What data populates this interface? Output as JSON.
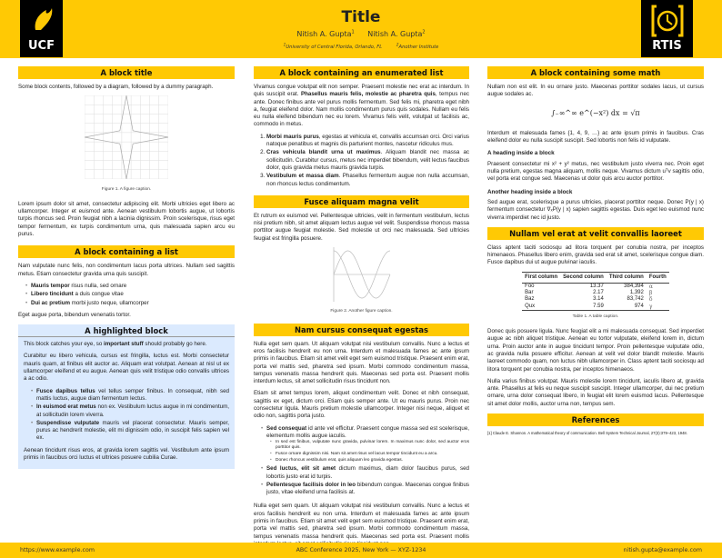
{
  "header": {
    "title": "Title",
    "authors": [
      "Nitish A. Gupta",
      "Nitish A. Gupta"
    ],
    "author_marks": [
      "1",
      "2"
    ],
    "affiliations": [
      "University of Central Florida, Orlando, FL",
      "Another Institute"
    ],
    "logo_left": "UCF",
    "logo_right": "RTIS",
    "accent": "#FFC904"
  },
  "col1": {
    "b1_title": "A block title",
    "b1_intro": "Some block contents, followed by a diagram, followed by a dummy paragraph.",
    "fig1_caption": "Figure 1. A figure caption.",
    "b1_para": "Lorem ipsum dolor sit amet, consectetur adipiscing elit. Morbi ultricies eget libero ac ullamcorper. Integer et euismod ante. Aenean vestibulum lobortis augue, ut lobortis turpis rhoncus sed. Proin feugiat nibh a lacinia dignissim. Proin scelerisque, risus eget tempor fermentum, ex turpis condimentum urna, quis malesuada sapien arcu eu purus.",
    "b2_title": "A block containing a list",
    "b2_intro": "Nam vulputate nunc felis, non condimentum lacus porta ultrices. Nullam sed sagittis metus. Etiam consectetur gravida urna quis suscipit.",
    "b2_list": [
      {
        "bold": "Mauris tempor",
        "text": " risus nulla, sed ornare"
      },
      {
        "bold": "Libero tincidunt",
        "text": " a duis congue vitae"
      },
      {
        "bold": "Dui ac pretium",
        "text": " morbi justo neque, ullamcorper"
      }
    ],
    "b2_outro": "Eget augue porta, bibendum venenatis tortor.",
    "b3_title": "A highlighted block",
    "b3_p1_a": "This block catches your eye, so ",
    "b3_p1_bold": "important stuff",
    "b3_p1_b": " should probably go here.",
    "b3_p2": "Curabitur eu libero vehicula, cursus est fringilla, luctus est. Morbi consectetur mauris quam, at finibus elit auctor ac. Aliquam erat volutpat. Aenean at nisl ut ex ullamcorper eleifend et eu augue. Aenean quis velit tristique odio convallis ultrices a ac odio.",
    "b3_list": [
      {
        "bold": "Fusce dapibus tellus",
        "text": " vel tellus semper finibus. In consequat, nibh sed mattis luctus, augue diam fermentum lectus."
      },
      {
        "bold": "In euismod erat metus",
        "text": " non ex. Vestibulum luctus augue in mi condimentum, at sollicitudin lorem viverra."
      },
      {
        "bold": "Suspendisse vulputate",
        "text": " mauris vel placerat consectetur. Mauris semper, purus ac hendrerit molestie, elit mi dignissim odio, in suscipit felis sapien vel ex."
      }
    ],
    "b3_p3": "Aenean tincidunt risus eros, at gravida lorem sagittis vel. Vestibulum ante ipsum primis in faucibus orci luctus et ultrices posuere cubilia Curae."
  },
  "col2": {
    "b1_title": "A block containing an enumerated list",
    "b1_p_a": "Vivamus congue volutpat elit non semper. Praesent molestie nec erat ac interdum. In quis suscipit erat. ",
    "b1_p_bold": "Phasellus mauris felis, molestie ac pharetra quis",
    "b1_p_b": ", tempus nec ante. Donec finibus ante vel purus mollis fermentum. Sed felis mi, pharetra eget nibh a, feugiat eleifend dolor. Nam mollis condimentum purus quis sodales. Nullam eu felis eu nulla eleifend bibendum nec eu lorem. Vivamus felis velit, volutpat ut facilisis ac, commodo in metus.",
    "b1_list": [
      {
        "bold": "Morbi mauris purus",
        "text": ", egestas at vehicula et, convallis accumsan orci. Orci varius natoque penatibus et magnis dis parturient montes, nascetur ridiculus mus."
      },
      {
        "bold": "Cras vehicula blandit urna ut maximus",
        "text": ". Aliquam blandit nec massa ac sollicitudin. Curabitur cursus, metus nec imperdiet bibendum, velit lectus faucibus dolor, quis gravida metus mauris gravida turpis."
      },
      {
        "bold": "Vestibulum et massa diam",
        "text": ". Phasellus fermentum augue non nulla accumsan, non rhoncus lectus condimentum."
      }
    ],
    "b2_title": "Fusce aliquam magna velit",
    "b2_p": "Et rutrum ex euismod vel. Pellentesque ultricies, velit in fermentum vestibulum, lectus nisi pretium nibh, sit amet aliquam lectus augue vel velit. Suspendisse rhoncus massa porttitor augue feugiat molestie. Sed molestie ut orci nec malesuada. Sed ultricies feugiat est fringilla posuere.",
    "fig2_caption": "Figure 2. Another figure caption.",
    "b3_title": "Nam cursus consequat egestas",
    "b3_p1": "Nulla eget sem quam. Ut aliquam volutpat nisi vestibulum convallis. Nunc a lectus et eros facilisis hendrerit eu non urna. Interdum et malesuada fames ac ante ipsum primis in faucibus. Etiam sit amet velit eget sem euismod tristique. Praesent enim erat, porta vel mattis sed, pharetra sed ipsum. Morbi commodo condimentum massa, tempus venenatis massa hendrerit quis. Maecenas sed porta est. Praesent mollis interdum lectus, sit amet sollicitudin risus tincidunt non.",
    "b3_p2": "Etiam sit amet tempus lorem, aliquet condimentum velit. Donec et nibh consequat, sagittis ex eget, dictum orci. Etiam quis semper ante. Ut eu mauris purus. Proin nec consectetur ligula. Mauris pretium molestie ullamcorper. Integer nisi neque, aliquet et odio non, sagittis porta justo.",
    "b3_list": [
      {
        "bold": "Sed consequat",
        "text": " id ante vel efficitur. Praesent congue massa sed est scelerisque, elementum mollis augue iaculis."
      },
      {
        "bold": "Sed luctus, elit sit amet",
        "text": " dictum maximus, diam dolor faucibus purus, sed lobortis justo erat id turpis."
      },
      {
        "bold": "Pellentesque facilisis dolor in leo",
        "text": " bibendum congue. Maecenas congue finibus justo, vitae eleifend urna facilisis at."
      }
    ],
    "b3_sublist": [
      "In sed est finibus, vulputate nunc gravida, pulvinar lorem. In maximus nunc dolor, sed auctor eros porttitor quis.",
      "Fusce ornare dignissim nisi. Nam sit amet risus vel lacus tempor tincidunt eu a arcu.",
      "Donec rhoncus vestibulum erat, quis aliquam leo gravida egestas."
    ],
    "b3_p3": "Nulla eget sem quam. Ut aliquam volutpat nisi vestibulum convallis. Nunc a lectus et eros facilisis hendrerit eu non urna. Interdum et malesuada fames ac ante ipsum primis in faucibus. Etiam sit amet velit eget sem euismod tristique. Praesent enim erat, porta vel mattis sed, pharetra sed ipsum. Morbi commodo condimentum massa, tempus venenatis massa hendrerit quis. Maecenas sed porta est. Praesent mollis interdum lectus, sit amet sollicitudin risus tincidunt non."
  },
  "col3": {
    "b1_title": "A block containing some math",
    "b1_p1": "Nullam non est elit. In eu ornare justo. Maecenas porttitor sodales lacus, ut cursus augue sodales ac.",
    "math1": "∫₋∞^∞ e^(−x²) dx = √π",
    "b1_p2": "Interdum et malesuada fames {1, 4, 9, …} ac ante ipsum primis in faucibus. Cras eleifend dolor eu nulla suscipit suscipit. Sed lobortis non felis id vulputate.",
    "h1": "A heading inside a block",
    "p3": "Praesent consectetur mi x² + y² metus, nec vestibulum justo viverra nec. Proin eget nulla pretium, egestas magna aliquam, mollis neque. Vivamus dictum uᵀv sagittis odio, vel porta erat congue sed. Maecenas ut dolor quis arcu auctor porttitor.",
    "h2": "Another heading inside a block",
    "p4": "Sed augue erat, scelerisque a purus ultricies, placerat porttitor neque. Donec P(y | x) fermentum consectetur ∇ₓP(y | x) sapien sagittis egestas. Duis eget leo euismod nunc viverra imperdiet nec id justo.",
    "b2_title": "Nullam vel erat at velit convallis laoreet",
    "b2_p1": "Class aptent taciti sociosqu ad litora torquent per conubia nostra, per inceptos himenaeos. Phasellus libero enim, gravida sed erat sit amet, scelerisque congue diam. Fusce dapibus dui ut augue pulvinar iaculis.",
    "table": {
      "headers": [
        "First column",
        "Second column",
        "Third column",
        "Fourth"
      ],
      "rows": [
        [
          "Foo",
          "13.37",
          "384,394",
          "α"
        ],
        [
          "Bar",
          "2.17",
          "1,392",
          "β"
        ],
        [
          "Baz",
          "3.14",
          "83,742",
          "δ"
        ],
        [
          "Qux",
          "7.59",
          "974",
          "γ"
        ]
      ],
      "caption": "Table 1. A table caption."
    },
    "b2_p2": "Donec quis posuere ligula. Nunc feugiat elit a mi malesuada consequat. Sed imperdiet augue ac nibh aliquet tristique. Aenean eu tortor vulputate, eleifend lorem in, dictum urna. Proin auctor ante in augue tincidunt tempor. Proin pellentesque vulputate odio, ac gravida nulla posuere efficitur. Aenean at velit vel dolor blandit molestie. Mauris laoreet commodo quam, non luctus nibh ullamcorper in. Class aptent taciti sociosqu ad litora torquent per conubia nostra, per inceptos himenaeos.",
    "b2_p3": "Nulla varius finibus volutpat. Mauris molestie lorem tincidunt, iaculis libero at, gravida ante. Phasellus at felis eu neque suscipit suscipit. Integer ullamcorper, dui nec pretium ornare, urna dolor consequat libero, in feugiat elit lorem euismod lacus. Pellentesque sit amet dolor mollis, auctor urna non, tempus sem.",
    "b3_title": "References",
    "ref1": "[1]  Claude E. Shannon. A mathematical theory of communication. Bell System Technical Journal, 27(3):379–423, 1948."
  },
  "footer": {
    "url": "https://www.example.com",
    "conference": "ABC Conference 2025, New York — XYZ-1234",
    "email": "nitish.gupta@example.com"
  }
}
